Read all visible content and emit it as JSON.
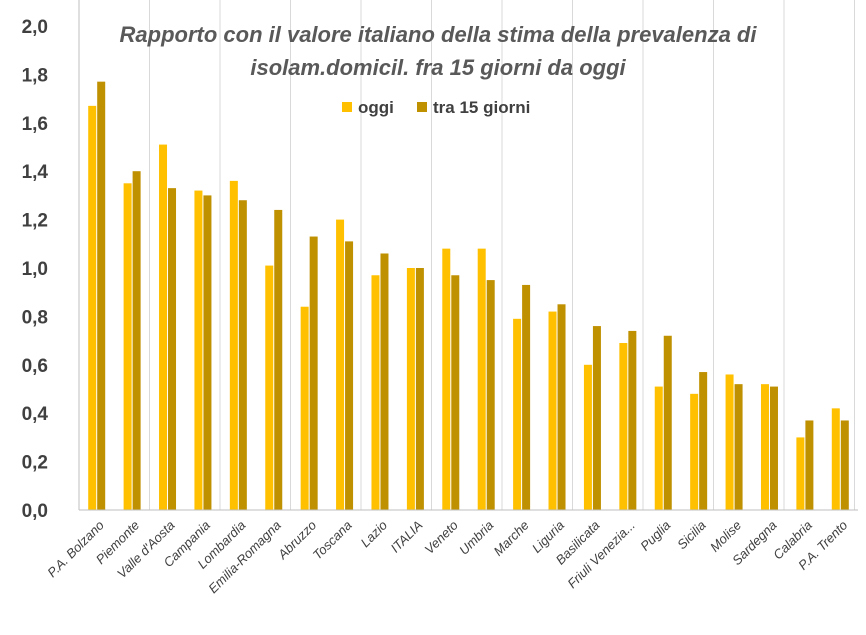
{
  "chart_data": {
    "type": "bar",
    "title_lines": [
      "Rapporto con il valore italiano della stima della prevalenza di",
      "isolam.domicil. fra 15 giorni da oggi"
    ],
    "categories": [
      "P.A. Bolzano",
      "Piemonte",
      "Valle d'Aosta",
      "Campania",
      "Lombardia",
      "Emilia-Romagna",
      "Abruzzo",
      "Toscana",
      "Lazio",
      "ITALIA",
      "Veneto",
      "Umbria",
      "Marche",
      "Liguria",
      "Basilicata",
      "Friuli Venezia...",
      "Puglia",
      "Sicilia",
      "Molise",
      "Sardegna",
      "Calabria",
      "P.A. Trento"
    ],
    "series": [
      {
        "name": "oggi",
        "color": "#FFC000",
        "values": [
          1.67,
          1.35,
          1.51,
          1.32,
          1.36,
          1.01,
          0.84,
          1.2,
          0.97,
          1.0,
          1.08,
          1.08,
          0.79,
          0.82,
          0.6,
          0.69,
          0.51,
          0.48,
          0.56,
          0.52,
          0.3,
          0.42
        ]
      },
      {
        "name": "tra 15 giorni",
        "color": "#BF9000",
        "values": [
          1.77,
          1.4,
          1.33,
          1.3,
          1.28,
          1.24,
          1.13,
          1.11,
          1.06,
          1.0,
          0.97,
          0.95,
          0.93,
          0.85,
          0.76,
          0.74,
          0.72,
          0.57,
          0.52,
          0.51,
          0.37,
          0.37
        ]
      }
    ],
    "ylim": [
      0,
      2.0
    ],
    "yticks": [
      "0,0",
      "0,2",
      "0,4",
      "0,6",
      "0,8",
      "1,0",
      "1,2",
      "1,4",
      "1,6",
      "1,8",
      "2,0"
    ],
    "legend_position": "top-center",
    "grid": "vertical"
  }
}
